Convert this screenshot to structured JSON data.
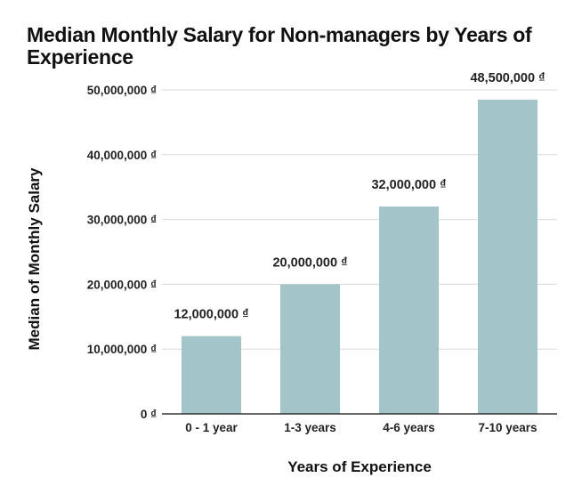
{
  "chart_data": {
    "type": "bar",
    "title": "Median Monthly Salary for Non-managers by Years of Experience",
    "xlabel": "Years of Experience",
    "ylabel": "Median of Monthly Salary",
    "categories": [
      "0 - 1 year",
      "1-3 years",
      "4-6 years",
      "7-10 years"
    ],
    "values": [
      12000000,
      20000000,
      32000000,
      48500000
    ],
    "data_labels": [
      "12,000,000 ₫",
      "20,000,000 ₫",
      "32,000,000 ₫",
      "48,500,000 ₫"
    ],
    "ylim": [
      0,
      50000000
    ],
    "yticks": [
      0,
      10000000,
      20000000,
      30000000,
      40000000,
      50000000
    ],
    "ytick_labels": [
      "0 ₫",
      "10,000,000 ₫",
      "20,000,000 ₫",
      "30,000,000 ₫",
      "40,000,000 ₫",
      "50,000,000 ₫"
    ],
    "grid": true,
    "legend": "none",
    "colors": {
      "bar": "#a3c4c8",
      "grid": "#d9d9d9",
      "axis": "#333333"
    }
  }
}
